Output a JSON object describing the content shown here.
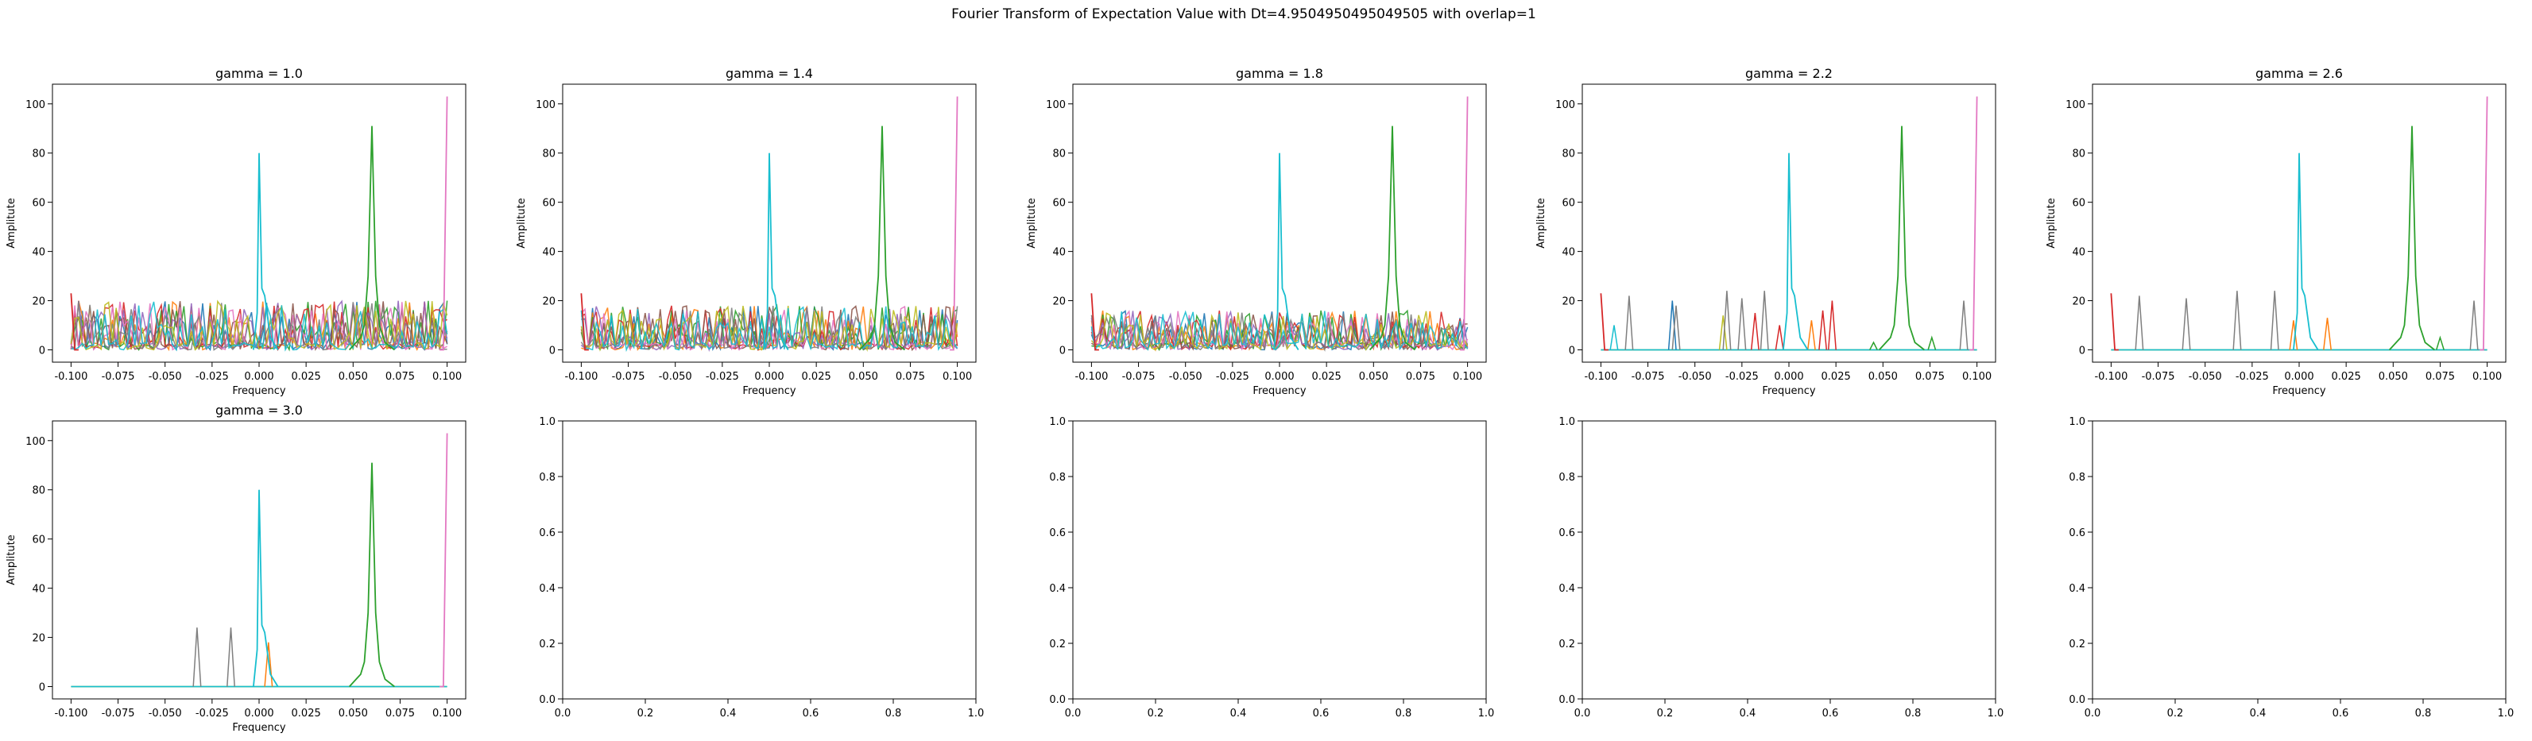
{
  "figure": {
    "suptitle": "Fourier Transform of Expectation Value with Dt=4.9504950495049505 with overlap=1"
  },
  "palette": [
    "#1f77b4",
    "#ff7f0e",
    "#2ca02c",
    "#d62728",
    "#9467bd",
    "#8c564b",
    "#e377c2",
    "#7f7f7f",
    "#bcbd22",
    "#17becf"
  ],
  "chart_data": [
    {
      "type": "line",
      "title": "gamma = 1.0",
      "xlabel": "Frequency",
      "ylabel": "Amplitute",
      "xlim": [
        -0.1,
        0.1
      ],
      "ylim": [
        -5,
        108
      ],
      "xticks": [
        "-0.100",
        "-0.075",
        "-0.050",
        "-0.025",
        "0.000",
        "0.025",
        "0.050",
        "0.075",
        "0.100"
      ],
      "yticks": [
        "0",
        "20",
        "40",
        "60",
        "80",
        "100"
      ],
      "peaks": [
        {
          "color": "#17becf",
          "x": 0.0,
          "y": 80
        },
        {
          "color": "#2ca02c",
          "x": 0.06,
          "y": 91
        },
        {
          "color": "#e377c2",
          "x": 0.1,
          "y": 103
        },
        {
          "color": "#d62728",
          "x": -0.1,
          "y": 23
        }
      ],
      "noise_level": 20
    },
    {
      "type": "line",
      "title": "gamma = 1.4",
      "xlabel": "Frequency",
      "ylabel": "Amplitute",
      "xlim": [
        -0.1,
        0.1
      ],
      "ylim": [
        -5,
        108
      ],
      "xticks": [
        "-0.100",
        "-0.075",
        "-0.050",
        "-0.025",
        "0.000",
        "0.025",
        "0.050",
        "0.075",
        "0.100"
      ],
      "yticks": [
        "0",
        "20",
        "40",
        "60",
        "80",
        "100"
      ],
      "peaks": [
        {
          "color": "#17becf",
          "x": 0.0,
          "y": 80
        },
        {
          "color": "#2ca02c",
          "x": 0.06,
          "y": 91
        },
        {
          "color": "#e377c2",
          "x": 0.1,
          "y": 103
        },
        {
          "color": "#d62728",
          "x": -0.1,
          "y": 23
        }
      ],
      "noise_level": 18
    },
    {
      "type": "line",
      "title": "gamma = 1.8",
      "xlabel": "Frequency",
      "ylabel": "Amplitute",
      "xlim": [
        -0.1,
        0.1
      ],
      "ylim": [
        -5,
        108
      ],
      "xticks": [
        "-0.100",
        "-0.075",
        "-0.050",
        "-0.025",
        "0.000",
        "0.025",
        "0.050",
        "0.075",
        "0.100"
      ],
      "yticks": [
        "0",
        "20",
        "40",
        "60",
        "80",
        "100"
      ],
      "peaks": [
        {
          "color": "#17becf",
          "x": 0.0,
          "y": 80
        },
        {
          "color": "#2ca02c",
          "x": 0.06,
          "y": 91
        },
        {
          "color": "#e377c2",
          "x": 0.1,
          "y": 103
        },
        {
          "color": "#d62728",
          "x": -0.1,
          "y": 23
        }
      ],
      "noise_level": 16
    },
    {
      "type": "line",
      "title": "gamma = 2.2",
      "xlabel": "Frequency",
      "ylabel": "Amplitute",
      "xlim": [
        -0.1,
        0.1
      ],
      "ylim": [
        -5,
        108
      ],
      "xticks": [
        "-0.100",
        "-0.075",
        "-0.050",
        "-0.025",
        "0.000",
        "0.025",
        "0.050",
        "0.075",
        "0.100"
      ],
      "yticks": [
        "0",
        "20",
        "40",
        "60",
        "80",
        "100"
      ],
      "peaks": [
        {
          "color": "#17becf",
          "x": 0.0,
          "y": 80
        },
        {
          "color": "#2ca02c",
          "x": 0.06,
          "y": 91
        },
        {
          "color": "#e377c2",
          "x": 0.1,
          "y": 103
        },
        {
          "color": "#d62728",
          "x": -0.1,
          "y": 23
        }
      ],
      "spikes": [
        {
          "color": "#17becf",
          "x": -0.093,
          "y": 10
        },
        {
          "color": "#7f7f7f",
          "x": -0.085,
          "y": 22
        },
        {
          "color": "#1f77b4",
          "x": -0.062,
          "y": 20
        },
        {
          "color": "#7f7f7f",
          "x": -0.06,
          "y": 18
        },
        {
          "color": "#bcbd22",
          "x": -0.035,
          "y": 14
        },
        {
          "color": "#7f7f7f",
          "x": -0.033,
          "y": 24
        },
        {
          "color": "#7f7f7f",
          "x": -0.025,
          "y": 21
        },
        {
          "color": "#d62728",
          "x": -0.018,
          "y": 15
        },
        {
          "color": "#7f7f7f",
          "x": -0.013,
          "y": 24
        },
        {
          "color": "#d62728",
          "x": -0.005,
          "y": 10
        },
        {
          "color": "#ff7f0e",
          "x": 0.012,
          "y": 12
        },
        {
          "color": "#d62728",
          "x": 0.018,
          "y": 16
        },
        {
          "color": "#d62728",
          "x": 0.023,
          "y": 20
        },
        {
          "color": "#2ca02c",
          "x": 0.045,
          "y": 3
        },
        {
          "color": "#2ca02c",
          "x": 0.076,
          "y": 5
        },
        {
          "color": "#7f7f7f",
          "x": 0.093,
          "y": 20
        }
      ]
    },
    {
      "type": "line",
      "title": "gamma = 2.6",
      "xlabel": "Frequency",
      "ylabel": "Amplitute",
      "xlim": [
        -0.1,
        0.1
      ],
      "ylim": [
        -5,
        108
      ],
      "xticks": [
        "-0.100",
        "-0.075",
        "-0.050",
        "-0.025",
        "0.000",
        "0.025",
        "0.050",
        "0.075",
        "0.100"
      ],
      "yticks": [
        "0",
        "20",
        "40",
        "60",
        "80",
        "100"
      ],
      "peaks": [
        {
          "color": "#17becf",
          "x": 0.0,
          "y": 80
        },
        {
          "color": "#2ca02c",
          "x": 0.06,
          "y": 91
        },
        {
          "color": "#e377c2",
          "x": 0.1,
          "y": 103
        },
        {
          "color": "#d62728",
          "x": -0.1,
          "y": 23
        }
      ],
      "spikes": [
        {
          "color": "#7f7f7f",
          "x": -0.085,
          "y": 22
        },
        {
          "color": "#7f7f7f",
          "x": -0.06,
          "y": 21
        },
        {
          "color": "#7f7f7f",
          "x": -0.033,
          "y": 24
        },
        {
          "color": "#7f7f7f",
          "x": -0.013,
          "y": 24
        },
        {
          "color": "#ff7f0e",
          "x": -0.003,
          "y": 12
        },
        {
          "color": "#ff7f0e",
          "x": 0.015,
          "y": 13
        },
        {
          "color": "#2ca02c",
          "x": 0.075,
          "y": 5
        },
        {
          "color": "#7f7f7f",
          "x": 0.093,
          "y": 20
        }
      ]
    },
    {
      "type": "line",
      "title": "gamma = 3.0",
      "xlabel": "Frequency",
      "ylabel": "Amplitute",
      "xlim": [
        -0.1,
        0.1
      ],
      "ylim": [
        -5,
        108
      ],
      "xticks": [
        "-0.100",
        "-0.075",
        "-0.050",
        "-0.025",
        "0.000",
        "0.025",
        "0.050",
        "0.075",
        "0.100"
      ],
      "yticks": [
        "0",
        "20",
        "40",
        "60",
        "80",
        "100"
      ],
      "peaks": [
        {
          "color": "#17becf",
          "x": 0.0,
          "y": 80
        },
        {
          "color": "#2ca02c",
          "x": 0.06,
          "y": 91
        },
        {
          "color": "#e377c2",
          "x": 0.1,
          "y": 103
        }
      ],
      "spikes": [
        {
          "color": "#7f7f7f",
          "x": -0.033,
          "y": 24
        },
        {
          "color": "#7f7f7f",
          "x": -0.015,
          "y": 24
        },
        {
          "color": "#ff7f0e",
          "x": 0.005,
          "y": 18
        }
      ]
    },
    {
      "type": "line",
      "empty": true,
      "xlim": [
        0,
        1
      ],
      "ylim": [
        0,
        1
      ],
      "xticks": [
        "0.0",
        "0.2",
        "0.4",
        "0.6",
        "0.8",
        "1.0"
      ],
      "yticks": [
        "0.0",
        "0.2",
        "0.4",
        "0.6",
        "0.8",
        "1.0"
      ]
    },
    {
      "type": "line",
      "empty": true,
      "xlim": [
        0,
        1
      ],
      "ylim": [
        0,
        1
      ],
      "xticks": [
        "0.0",
        "0.2",
        "0.4",
        "0.6",
        "0.8",
        "1.0"
      ],
      "yticks": [
        "0.0",
        "0.2",
        "0.4",
        "0.6",
        "0.8",
        "1.0"
      ]
    },
    {
      "type": "line",
      "empty": true,
      "xlim": [
        0,
        1
      ],
      "ylim": [
        0,
        1
      ],
      "xticks": [
        "0.0",
        "0.2",
        "0.4",
        "0.6",
        "0.8",
        "1.0"
      ],
      "yticks": [
        "0.0",
        "0.2",
        "0.4",
        "0.6",
        "0.8",
        "1.0"
      ]
    },
    {
      "type": "line",
      "empty": true,
      "xlim": [
        0,
        1
      ],
      "ylim": [
        0,
        1
      ],
      "xticks": [
        "0.0",
        "0.2",
        "0.4",
        "0.6",
        "0.8",
        "1.0"
      ],
      "yticks": [
        "0.0",
        "0.2",
        "0.4",
        "0.6",
        "0.8",
        "1.0"
      ]
    }
  ]
}
